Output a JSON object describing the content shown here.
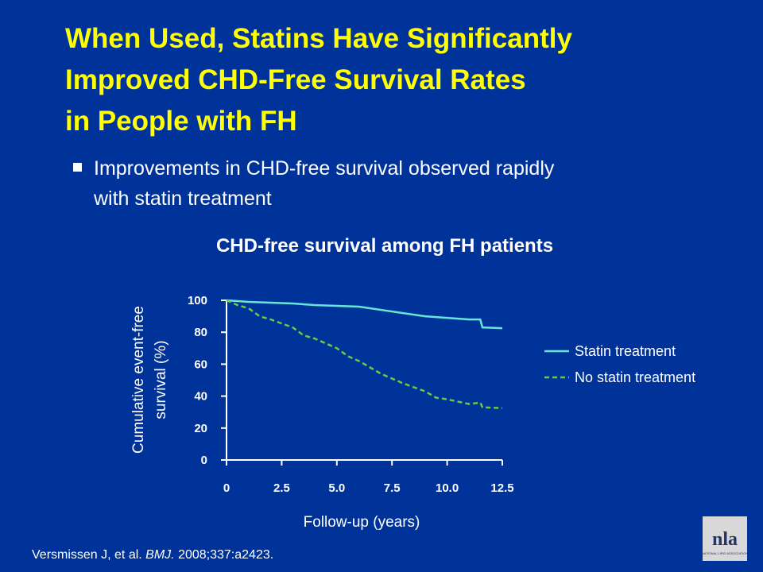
{
  "slide": {
    "title_lines": [
      "When Used, Statins Have Significantly",
      "Improved CHD-Free Survival Rates",
      "in People with FH"
    ],
    "bullet_lines": [
      "Improvements in CHD-free survival observed rapidly",
      "with statin treatment"
    ],
    "citation": {
      "before": "Versmissen J, et al. ",
      "journal": "BMJ.",
      "after": " 2008;337:a2423."
    },
    "logo": {
      "text": "nla",
      "subtext": "NATIONAL LIPID ASSOCIATION"
    }
  },
  "chart_data": {
    "type": "line",
    "title": "CHD-free survival among FH patients",
    "ylabel_lines": [
      "Cumulative event-free",
      "survival (%)"
    ],
    "xlabel": "Follow-up (years)",
    "xlim": [
      0,
      12.5
    ],
    "ylim": [
      0,
      100
    ],
    "xticks": [
      0,
      2.5,
      {
        "value": 5,
        "label": "5.0"
      },
      7.5,
      {
        "value": 10,
        "label": "10.0"
      },
      12.5
    ],
    "yticks": [
      0,
      20,
      40,
      60,
      80,
      100
    ],
    "grid": false,
    "legend": "right",
    "series": [
      {
        "name": "Statin treatment",
        "color": "#66e6d6",
        "dash": false,
        "x": [
          0,
          1,
          2,
          3,
          4,
          5,
          6,
          7,
          8,
          9,
          10,
          11,
          11.5,
          11.6,
          12.5
        ],
        "values": [
          100,
          99,
          98.5,
          98,
          97,
          96.5,
          96,
          94,
          92,
          90,
          89,
          88,
          88,
          83,
          82.5
        ]
      },
      {
        "name": "No statin treatment",
        "color": "#66cc44",
        "dash": true,
        "x": [
          0,
          0.5,
          1,
          1.5,
          2,
          3,
          3.5,
          4,
          5,
          5.5,
          6,
          7,
          8,
          9,
          9.5,
          10,
          11,
          11.5,
          11.6,
          12.5
        ],
        "values": [
          100,
          97,
          95,
          90,
          88,
          83,
          78,
          76,
          70,
          65,
          62,
          54,
          48,
          43,
          39,
          38,
          35,
          36,
          33,
          32.5
        ]
      }
    ]
  }
}
